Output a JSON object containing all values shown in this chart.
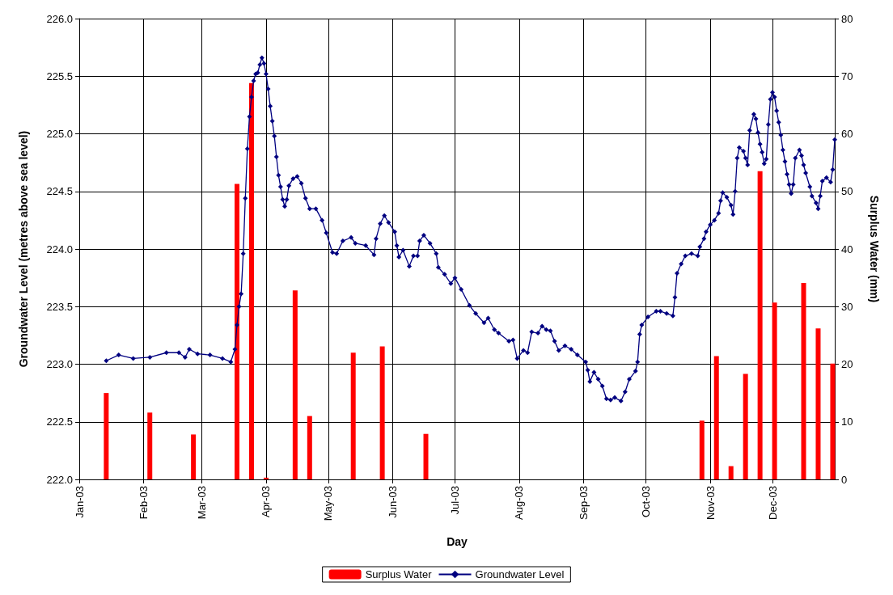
{
  "chart_data": {
    "type": "line",
    "xlabel": "Day",
    "ylabel": "Groundwater Level (metres above sea level)",
    "y2label": "Surplus Water (mm)",
    "xlim": [
      "2003-01-01",
      "2003-12-31"
    ],
    "xticks": [
      {
        "value": "2003-01-01",
        "label": "Jan-03"
      },
      {
        "value": "2003-02-01",
        "label": "Feb-03"
      },
      {
        "value": "2003-03-01",
        "label": "Mar-03"
      },
      {
        "value": "2003-04-01",
        "label": "Apr-03"
      },
      {
        "value": "2003-05-01",
        "label": "May-03"
      },
      {
        "value": "2003-06-01",
        "label": "Jun-03"
      },
      {
        "value": "2003-07-01",
        "label": "Jul-03"
      },
      {
        "value": "2003-08-01",
        "label": "Aug-03"
      },
      {
        "value": "2003-09-01",
        "label": "Sep-03"
      },
      {
        "value": "2003-10-01",
        "label": "Oct-03"
      },
      {
        "value": "2003-11-01",
        "label": "Nov-03"
      },
      {
        "value": "2003-12-01",
        "label": "Dec-03"
      }
    ],
    "ylim": [
      222,
      226
    ],
    "yticks": [
      {
        "value": 222,
        "label": "222.0"
      },
      {
        "value": 222.5,
        "label": "222.5"
      },
      {
        "value": 223,
        "label": "223.0"
      },
      {
        "value": 223.5,
        "label": "223.5"
      },
      {
        "value": 224,
        "label": "224.0"
      },
      {
        "value": 224.5,
        "label": "224.5"
      },
      {
        "value": 225,
        "label": "225.0"
      },
      {
        "value": 225.5,
        "label": "225.5"
      },
      {
        "value": 226,
        "label": "226.0"
      }
    ],
    "y2lim": [
      0,
      80
    ],
    "y2ticks": [
      0,
      10,
      20,
      30,
      40,
      50,
      60,
      70,
      80
    ],
    "grid": true,
    "legend": "bottom",
    "marker": "diamond",
    "line_style": "solid",
    "series": [
      {
        "name": "Surplus Water",
        "type": "bar",
        "axis": "y2",
        "color": "#ff0000",
        "x": [
          "2003-01-14",
          "2003-02-04",
          "2003-02-25",
          "2003-03-18",
          "2003-03-25",
          "2003-04-01",
          "2003-04-15",
          "2003-04-22",
          "2003-05-13",
          "2003-05-27",
          "2003-06-17",
          "2003-10-28",
          "2003-11-04",
          "2003-11-11",
          "2003-11-18",
          "2003-11-25",
          "2003-12-02",
          "2003-12-16",
          "2003-12-23",
          "2003-12-30"
        ],
        "values": [
          15,
          11.6,
          7.8,
          51.3,
          68.8,
          0.3,
          32.8,
          11,
          22,
          23.1,
          7.9,
          10.2,
          21.4,
          2.3,
          18.3,
          53.5,
          30.7,
          34.1,
          26.2,
          20.1
        ]
      },
      {
        "name": "Groundwater Level",
        "color": "#000080",
        "x": [
          "2003-01-14",
          "2003-01-20",
          "2003-01-27",
          "2003-02-04",
          "2003-02-12",
          "2003-02-18",
          "2003-02-21",
          "2003-02-23",
          "2003-02-27",
          "2003-03-05",
          "2003-03-11",
          "2003-03-15",
          "2003-03-17",
          "2003-03-18",
          "2003-03-19",
          "2003-03-20",
          "2003-03-21",
          "2003-03-22",
          "2003-03-23",
          "2003-03-24",
          "2003-03-25",
          "2003-03-26",
          "2003-03-27",
          "2003-03-28",
          "2003-03-29",
          "2003-03-30",
          "2003-03-31",
          "2003-04-01",
          "2003-04-02",
          "2003-04-03",
          "2003-04-04",
          "2003-04-05",
          "2003-04-06",
          "2003-04-07",
          "2003-04-08",
          "2003-04-09",
          "2003-04-10",
          "2003-04-11",
          "2003-04-12",
          "2003-04-14",
          "2003-04-16",
          "2003-04-18",
          "2003-04-20",
          "2003-04-22",
          "2003-04-25",
          "2003-04-28",
          "2003-04-30",
          "2003-05-03",
          "2003-05-05",
          "2003-05-08",
          "2003-05-12",
          "2003-05-14",
          "2003-05-19",
          "2003-05-23",
          "2003-05-24",
          "2003-05-26",
          "2003-05-28",
          "2003-05-30",
          "2003-06-02",
          "2003-06-03",
          "2003-06-04",
          "2003-06-06",
          "2003-06-09",
          "2003-06-11",
          "2003-06-13",
          "2003-06-14",
          "2003-06-16",
          "2003-06-19",
          "2003-06-22",
          "2003-06-23",
          "2003-06-26",
          "2003-06-29",
          "2003-07-01",
          "2003-07-04",
          "2003-07-08",
          "2003-07-11",
          "2003-07-15",
          "2003-07-17",
          "2003-07-20",
          "2003-07-22",
          "2003-07-27",
          "2003-07-29",
          "2003-07-31",
          "2003-08-03",
          "2003-08-05",
          "2003-08-07",
          "2003-08-10",
          "2003-08-12",
          "2003-08-14",
          "2003-08-16",
          "2003-08-18",
          "2003-08-20",
          "2003-08-23",
          "2003-08-26",
          "2003-08-29",
          "2003-09-02",
          "2003-09-03",
          "2003-09-04",
          "2003-09-06",
          "2003-09-08",
          "2003-09-10",
          "2003-09-12",
          "2003-09-14",
          "2003-09-16",
          "2003-09-19",
          "2003-09-21",
          "2003-09-23",
          "2003-09-26",
          "2003-09-27",
          "2003-09-28",
          "2003-09-29",
          "2003-10-02",
          "2003-10-06",
          "2003-10-08",
          "2003-10-11",
          "2003-10-14",
          "2003-10-15",
          "2003-10-16",
          "2003-10-18",
          "2003-10-20",
          "2003-10-23",
          "2003-10-26",
          "2003-10-27",
          "2003-10-29",
          "2003-10-30",
          "2003-11-01",
          "2003-11-03",
          "2003-11-05",
          "2003-11-06",
          "2003-11-07",
          "2003-11-09",
          "2003-11-11",
          "2003-11-12",
          "2003-11-13",
          "2003-11-14",
          "2003-11-15",
          "2003-11-17",
          "2003-11-18",
          "2003-11-19",
          "2003-11-20",
          "2003-11-22",
          "2003-11-23",
          "2003-11-24",
          "2003-11-25",
          "2003-11-26",
          "2003-11-27",
          "2003-11-28",
          "2003-11-29",
          "2003-11-30",
          "2003-12-01",
          "2003-12-02",
          "2003-12-03",
          "2003-12-04",
          "2003-12-05",
          "2003-12-06",
          "2003-12-07",
          "2003-12-08",
          "2003-12-09",
          "2003-12-10",
          "2003-12-11",
          "2003-12-12",
          "2003-12-14",
          "2003-12-15",
          "2003-12-16",
          "2003-12-17",
          "2003-12-19",
          "2003-12-20",
          "2003-12-22",
          "2003-12-23",
          "2003-12-24",
          "2003-12-25",
          "2003-12-27",
          "2003-12-29",
          "2003-12-30",
          "2003-12-31"
        ],
        "values": [
          223.03,
          223.08,
          223.05,
          223.06,
          223.1,
          223.1,
          223.06,
          223.13,
          223.09,
          223.08,
          223.05,
          223.02,
          223.13,
          223.34,
          223.5,
          223.61,
          223.96,
          224.44,
          224.87,
          225.15,
          225.32,
          225.46,
          225.52,
          225.53,
          225.6,
          225.66,
          225.61,
          225.52,
          225.39,
          225.24,
          225.11,
          224.98,
          224.8,
          224.64,
          224.54,
          224.43,
          224.37,
          224.43,
          224.55,
          224.61,
          224.63,
          224.57,
          224.44,
          224.35,
          224.35,
          224.25,
          224.14,
          223.97,
          223.96,
          224.07,
          224.1,
          224.05,
          224.03,
          223.95,
          224.09,
          224.22,
          224.29,
          224.23,
          224.15,
          224.03,
          223.93,
          223.99,
          223.85,
          223.94,
          223.94,
          224.07,
          224.12,
          224.05,
          223.96,
          223.84,
          223.78,
          223.7,
          223.75,
          223.65,
          223.51,
          223.44,
          223.36,
          223.4,
          223.3,
          223.27,
          223.2,
          223.21,
          223.05,
          223.12,
          223.1,
          223.28,
          223.27,
          223.33,
          223.3,
          223.29,
          223.2,
          223.12,
          223.16,
          223.13,
          223.08,
          223.02,
          222.95,
          222.85,
          222.93,
          222.87,
          222.81,
          222.7,
          222.69,
          222.71,
          222.68,
          222.76,
          222.87,
          222.94,
          223.02,
          223.26,
          223.34,
          223.41,
          223.46,
          223.46,
          223.44,
          223.42,
          223.58,
          223.79,
          223.87,
          223.94,
          223.96,
          223.94,
          224.02,
          224.09,
          224.15,
          224.21,
          224.25,
          224.31,
          224.42,
          224.49,
          224.45,
          224.38,
          224.3,
          224.5,
          224.79,
          224.88,
          224.85,
          224.79,
          224.73,
          225.03,
          225.17,
          225.13,
          225.01,
          224.91,
          224.84,
          224.74,
          224.78,
          225.08,
          225.3,
          225.36,
          225.32,
          225.2,
          225.1,
          224.99,
          224.86,
          224.76,
          224.65,
          224.56,
          224.48,
          224.56,
          224.79,
          224.86,
          224.81,
          224.73,
          224.66,
          224.54,
          224.46,
          224.4,
          224.35,
          224.46,
          224.59,
          224.62,
          224.58,
          224.69,
          224.95
        ]
      }
    ]
  }
}
